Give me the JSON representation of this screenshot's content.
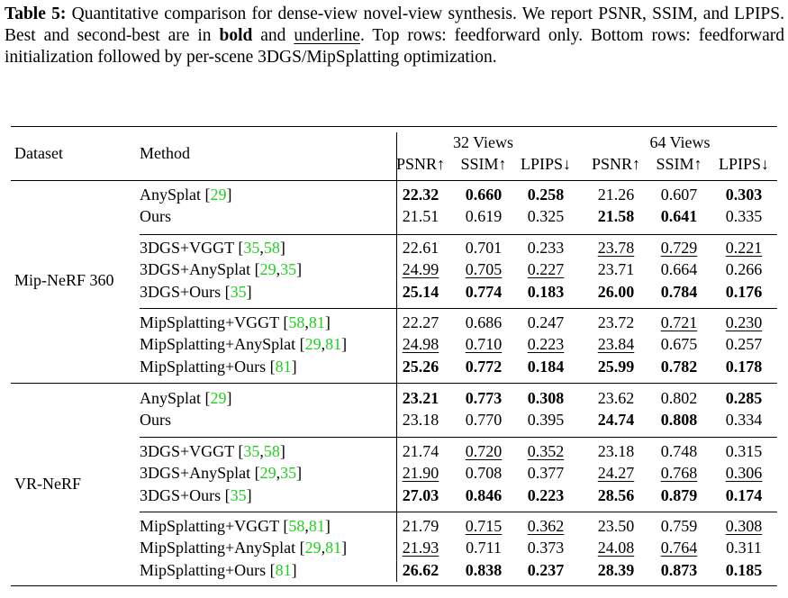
{
  "caption": {
    "label": "Table 5:",
    "text_1": "Quantitative comparison for dense-view novel-view synthesis. We report PSNR, SSIM, and LPIPS. Best and second-best are in",
    "bold_word": "bold",
    "text_2": "and",
    "underline_word": "underline",
    "text_3": ". Top rows: feedforward only. Bottom rows: feedforward initialization followed by per-scene 3DGS/MipSplatting optimization."
  },
  "table": {
    "header": {
      "dataset": "Dataset",
      "method": "Method",
      "groups": [
        "32 Views",
        "64 Views"
      ],
      "metrics": [
        "PSNR↑",
        "SSIM↑",
        "LPIPS↓",
        "PSNR↑",
        "SSIM↑",
        "LPIPS↓"
      ]
    },
    "sections": [
      {
        "dataset": "Mip-NeRF 360",
        "blocks": [
          [
            {
              "method": "AnySplat [29]",
              "values": [
                "22.32",
                "0.660",
                "0.258",
                "21.26",
                "0.607",
                "0.303"
              ],
              "bold": [
                0,
                1,
                2,
                5
              ],
              "underline": []
            },
            {
              "method": "Ours",
              "values": [
                "21.51",
                "0.619",
                "0.325",
                "21.58",
                "0.641",
                "0.335"
              ],
              "bold": [
                3,
                4
              ],
              "underline": []
            }
          ],
          [
            {
              "method": "3DGS+VGGT [35,58]",
              "values": [
                "22.61",
                "0.701",
                "0.233",
                "23.78",
                "0.729",
                "0.221"
              ],
              "bold": [],
              "underline": [
                3,
                4,
                5
              ]
            },
            {
              "method": "3DGS+AnySplat [29,35]",
              "values": [
                "24.99",
                "0.705",
                "0.227",
                "23.71",
                "0.664",
                "0.266"
              ],
              "bold": [],
              "underline": [
                0,
                1,
                2
              ]
            },
            {
              "method": "3DGS+Ours [35]",
              "values": [
                "25.14",
                "0.774",
                "0.183",
                "26.00",
                "0.784",
                "0.176"
              ],
              "bold": [
                0,
                1,
                2,
                3,
                4,
                5
              ],
              "underline": []
            }
          ],
          [
            {
              "method": "MipSplatting+VGGT [58,81]",
              "values": [
                "22.27",
                "0.686",
                "0.247",
                "23.72",
                "0.721",
                "0.230"
              ],
              "bold": [],
              "underline": [
                4,
                5
              ]
            },
            {
              "method": "MipSplatting+AnySplat [29,81]",
              "values": [
                "24.98",
                "0.710",
                "0.223",
                "23.84",
                "0.675",
                "0.257"
              ],
              "bold": [],
              "underline": [
                0,
                1,
                2,
                3
              ]
            },
            {
              "method": "MipSplatting+Ours [81]",
              "values": [
                "25.26",
                "0.772",
                "0.184",
                "25.99",
                "0.782",
                "0.178"
              ],
              "bold": [
                0,
                1,
                2,
                3,
                4,
                5
              ],
              "underline": []
            }
          ]
        ]
      },
      {
        "dataset": "VR-NeRF",
        "blocks": [
          [
            {
              "method": "AnySplat [29]",
              "values": [
                "23.21",
                "0.773",
                "0.308",
                "23.62",
                "0.802",
                "0.285"
              ],
              "bold": [
                0,
                1,
                2,
                5
              ],
              "underline": []
            },
            {
              "method": "Ours",
              "values": [
                "23.18",
                "0.770",
                "0.395",
                "24.74",
                "0.808",
                "0.334"
              ],
              "bold": [
                3,
                4
              ],
              "underline": []
            }
          ],
          [
            {
              "method": "3DGS+VGGT [35,58]",
              "values": [
                "21.74",
                "0.720",
                "0.352",
                "23.18",
                "0.748",
                "0.315"
              ],
              "bold": [],
              "underline": [
                1,
                2
              ]
            },
            {
              "method": "3DGS+AnySplat [29,35]",
              "values": [
                "21.90",
                "0.708",
                "0.377",
                "24.27",
                "0.768",
                "0.306"
              ],
              "bold": [],
              "underline": [
                0,
                3,
                4,
                5
              ]
            },
            {
              "method": "3DGS+Ours [35]",
              "values": [
                "27.03",
                "0.846",
                "0.223",
                "28.56",
                "0.879",
                "0.174"
              ],
              "bold": [
                0,
                1,
                2,
                3,
                4,
                5
              ],
              "underline": []
            }
          ],
          [
            {
              "method": "MipSplatting+VGGT [58,81]",
              "values": [
                "21.79",
                "0.715",
                "0.362",
                "23.50",
                "0.759",
                "0.308"
              ],
              "bold": [],
              "underline": [
                1,
                2,
                5
              ]
            },
            {
              "method": "MipSplatting+AnySplat [29,81]",
              "values": [
                "21.93",
                "0.711",
                "0.373",
                "24.08",
                "0.764",
                "0.311"
              ],
              "bold": [],
              "underline": [
                0,
                3,
                4
              ]
            },
            {
              "method": "MipSplatting+Ours [81]",
              "values": [
                "26.62",
                "0.838",
                "0.237",
                "28.39",
                "0.873",
                "0.185"
              ],
              "bold": [
                0,
                1,
                2,
                3,
                4,
                5
              ],
              "underline": []
            }
          ]
        ]
      }
    ]
  }
}
